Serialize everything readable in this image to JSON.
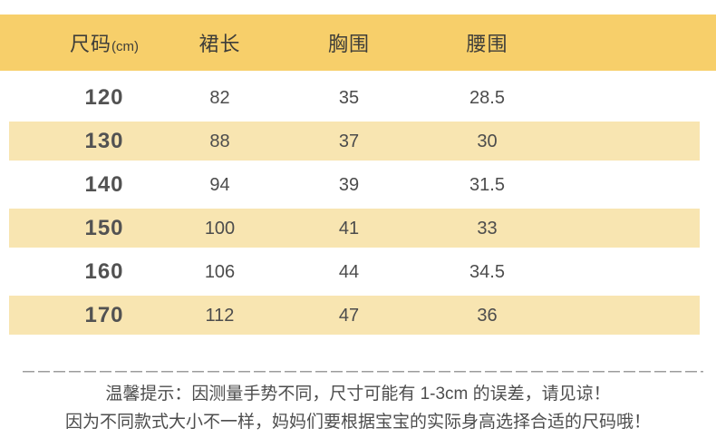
{
  "table": {
    "headers": [
      {
        "label": "尺码",
        "suffix": "(cm)"
      },
      {
        "label": "裙长"
      },
      {
        "label": "胸围"
      },
      {
        "label": "腰围"
      }
    ],
    "rows": [
      {
        "size": "120",
        "skirt": "82",
        "chest": "35",
        "waist": "28.5"
      },
      {
        "size": "130",
        "skirt": "88",
        "chest": "37",
        "waist": "30"
      },
      {
        "size": "140",
        "skirt": "94",
        "chest": "39",
        "waist": "31.5"
      },
      {
        "size": "150",
        "skirt": "100",
        "chest": "41",
        "waist": "33"
      },
      {
        "size": "160",
        "skirt": "106",
        "chest": "44",
        "waist": "34.5"
      },
      {
        "size": "170",
        "skirt": "112",
        "chest": "47",
        "waist": "36"
      }
    ]
  },
  "note": {
    "line1": "温馨提示：因测量手势不同，尺寸可能有 1-3cm 的误差，请见谅！",
    "line2": "因为不同款式大小不一样，妈妈们要根据宝宝的实际身高选择合适的尺码哦！"
  },
  "colors": {
    "header_bg": "#f7cf6a",
    "stripe_bg": "#f8e5b1",
    "header_text": "#3f3e39",
    "body_text": "#4c4c4c",
    "note_text": "#4d4d4d",
    "divider": "#9c9c9c"
  }
}
